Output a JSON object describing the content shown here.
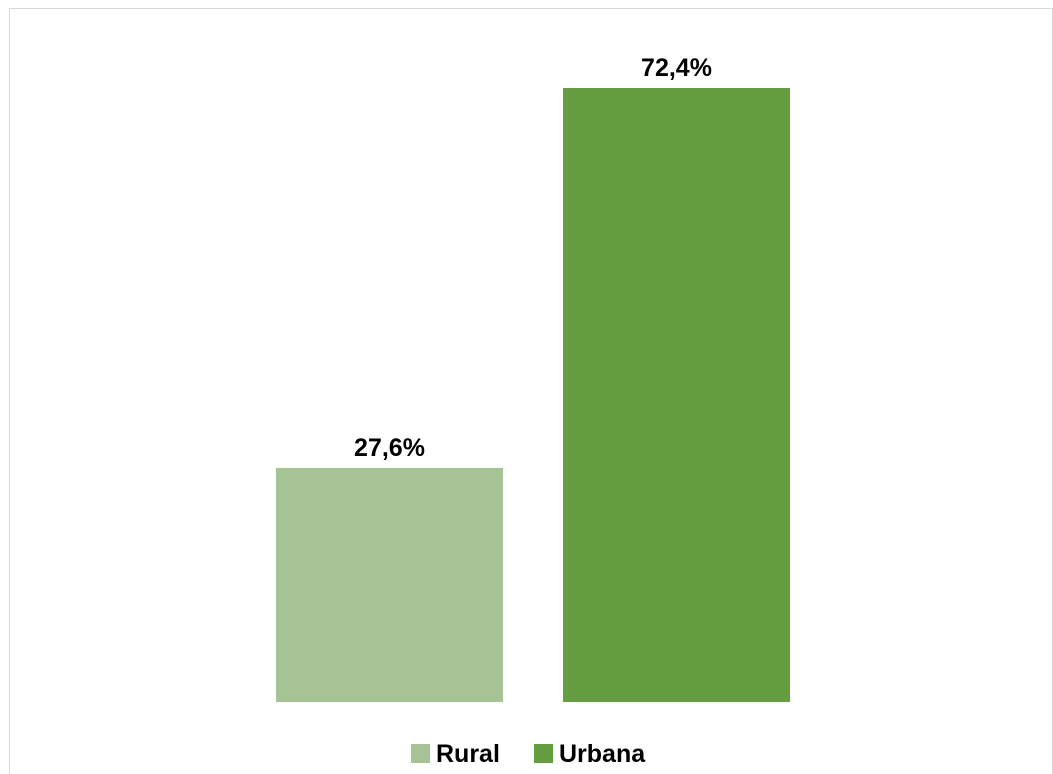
{
  "chart_data": {
    "type": "bar",
    "categories": [
      "Rural",
      "Urbana"
    ],
    "values": [
      27.6,
      72.4
    ],
    "value_labels": [
      "27,6%",
      "72,4%"
    ],
    "colors": [
      "#a5c394",
      "#659e40"
    ],
    "ylim": [
      0,
      72.4
    ],
    "grid": false,
    "legend_position": "bottom",
    "legend": [
      {
        "name": "Rural",
        "color": "#a5c394"
      },
      {
        "name": "Urbana",
        "color": "#659e40"
      }
    ]
  }
}
